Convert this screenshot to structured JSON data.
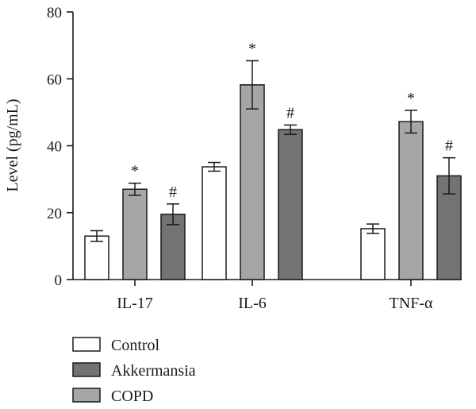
{
  "chart_data": {
    "type": "bar",
    "title": "",
    "xlabel": "",
    "ylabel": "Level (pg/mL)",
    "ylim": [
      0,
      80
    ],
    "yticks": [
      0,
      20,
      40,
      60,
      80
    ],
    "categories": [
      "IL-17",
      "IL-6",
      "TNF-α"
    ],
    "series": [
      {
        "name": "Control",
        "color": "#ffffff",
        "values": [
          13.0,
          33.7,
          15.2
        ],
        "errors": [
          1.6,
          1.3,
          1.4
        ],
        "markers": [
          "",
          "",
          ""
        ]
      },
      {
        "name": "COPD",
        "color": "#a6a6a6",
        "values": [
          27.0,
          58.2,
          47.2
        ],
        "errors": [
          1.8,
          7.2,
          3.4
        ],
        "markers": [
          "*",
          "*",
          "*"
        ]
      },
      {
        "name": "Akkermansia",
        "color": "#737373",
        "values": [
          19.5,
          44.8,
          31.0
        ],
        "errors": [
          3.1,
          1.4,
          5.4
        ],
        "markers": [
          "#",
          "#",
          "#"
        ]
      }
    ],
    "legend": {
      "position": "bottom-left",
      "entries": [
        {
          "label": "Control",
          "color": "#ffffff"
        },
        {
          "label": "Akkermansia",
          "color": "#737373"
        },
        {
          "label": "COPD",
          "color": "#a6a6a6"
        }
      ]
    },
    "grid": false
  }
}
